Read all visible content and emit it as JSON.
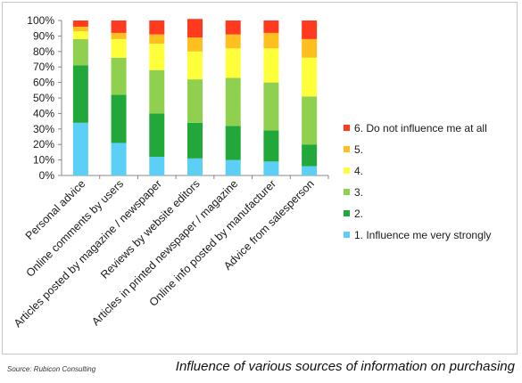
{
  "chart_data": {
    "type": "bar",
    "stacked": true,
    "categories": [
      "Personal advice",
      "Online comments by users",
      "Articles posted by magazine / newspaper",
      "Reviews by website editors",
      "Articles in printed newspaper / magazine",
      "Online info posted by manufacturer",
      "Advice from salesperson"
    ],
    "series": [
      {
        "name": "1. Influence me very strongly",
        "color": "#5bcff5",
        "values": [
          34,
          21,
          12,
          11,
          10,
          9,
          6
        ]
      },
      {
        "name": "2.",
        "color": "#22a83a",
        "values": [
          37,
          31,
          28,
          23,
          22,
          20,
          14
        ]
      },
      {
        "name": "3.",
        "color": "#8fd14f",
        "values": [
          17,
          24,
          28,
          28,
          31,
          31,
          31
        ]
      },
      {
        "name": "4.",
        "color": "#ffff3a",
        "values": [
          5,
          12,
          17,
          18,
          19,
          22,
          25
        ]
      },
      {
        "name": "5.",
        "color": "#ffbf1e",
        "values": [
          3,
          4,
          6,
          9,
          9,
          10,
          12
        ]
      },
      {
        "name": "6. Do not influence me at all",
        "color": "#ff3a1e",
        "values": [
          4,
          8,
          9,
          12,
          9,
          8,
          12
        ]
      }
    ],
    "yticks": [
      "0%",
      "10%",
      "20%",
      "30%",
      "40%",
      "50%",
      "60%",
      "70%",
      "80%",
      "90%",
      "100%"
    ],
    "ylim": [
      0,
      100
    ],
    "grid": false,
    "legend": "right"
  },
  "footer": {
    "source": "Source: Rubicon Consulting",
    "caption": "Influence of various sources of information on purchasing"
  }
}
